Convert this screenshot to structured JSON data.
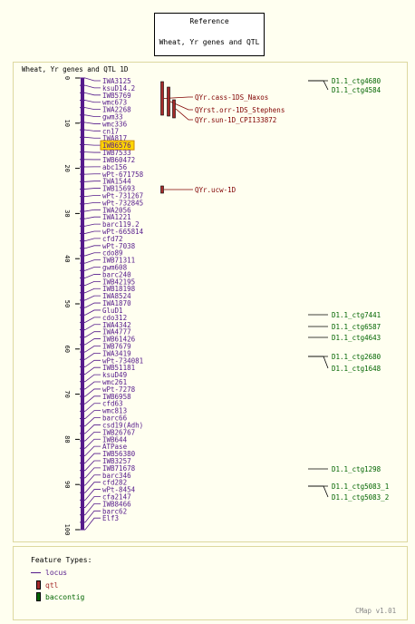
{
  "reference": {
    "title": "Reference",
    "subtitle": "Wheat, Yr genes and QTL"
  },
  "map": {
    "title": "Wheat, Yr genes and QTL 1D",
    "ticks": [
      "0",
      "10",
      "20",
      "30",
      "40",
      "50",
      "60",
      "70",
      "80",
      "90",
      "100"
    ],
    "highlighted": "IWB6576",
    "markers": [
      "IWA3125",
      "ksuD14.2",
      "IWB5769",
      "wmc673",
      "IWA2268",
      "gwm33",
      "wmc336",
      "cn17",
      "IWA817",
      "IWB6576",
      "IWB7533",
      "IWB60472",
      "abc156",
      "wPt-671758",
      "IWA1544",
      "IWB15693",
      "wPt-731267",
      "wPt-732845",
      "IWA2056",
      "IWA1221",
      "barc119.2",
      "wPt-665814",
      "cfd72",
      "wPt-7038",
      "cdo89",
      "IWB71311",
      "gwm608",
      "barc240",
      "IWB42195",
      "IWB18198",
      "IWA8524",
      "IWA1870",
      "GluD1",
      "cdo312",
      "IWA4342",
      "IWA4777",
      "IWB61426",
      "IWB7679",
      "IWA3419",
      "wPt-734081",
      "IWB51181",
      "ksuD49",
      "wmc261",
      "wPt-7278",
      "IWB6958",
      "cfd63",
      "wmc813",
      "barc66",
      "csd19(Adh)",
      "IWB26767",
      "IWB644",
      "ATPase",
      "IWB56380",
      "IWB3257",
      "IWB71678",
      "barc346",
      "cfd282",
      "wPt-8454",
      "cfa2147",
      "IWB8466",
      "barc62",
      "Elf3"
    ],
    "qtl": [
      "QYr.cass-1DS_Naxos",
      "QYrst.orr-1DS_Stephens",
      "QYr.sun-1D_CPI133872",
      "QYr.ucw-1D"
    ],
    "contigs": [
      "D1.1_ctg4680",
      "D1.1_ctg4584",
      "D1.1_ctg7441",
      "D1.1_ctg6587",
      "D1.1_ctg4643",
      "D1.1_ctg2680",
      "D1.1_ctg1648",
      "D1.1_ctg1298",
      "D1.1_ctg5083_1",
      "D1.1_ctg5083_2"
    ]
  },
  "legend": {
    "title": "Feature Types:",
    "items": [
      {
        "label": "locus",
        "color": "#551a8b"
      },
      {
        "label": "qtl",
        "color": "#a52a2a"
      },
      {
        "label": "baccontig",
        "color": "#006400"
      }
    ]
  },
  "footer": {
    "version": "CMap v1.01"
  },
  "colors": {
    "locus": "#551a8b",
    "qtl": "#a52a2a",
    "baccontig": "#006400",
    "qtl_label": "#800000",
    "background": "#fffff0",
    "frame": "#ddd8a0"
  }
}
